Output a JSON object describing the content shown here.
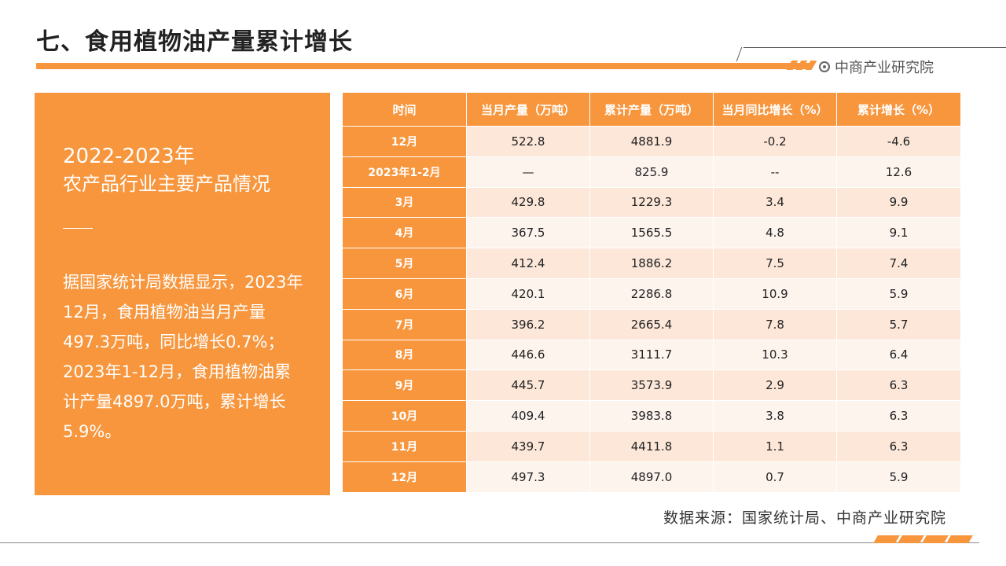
{
  "header": {
    "title": "七、食用植物油产量累计增长",
    "brand": "中商产业研究院",
    "accent_color": "#f7963d"
  },
  "panel": {
    "year": "2022-2023年",
    "subtitle": "农产品行业主要产品情况",
    "body": "据国家统计局数据显示，2023年12月，食用植物油当月产量497.3万吨，同比增长0.7%；2023年1-12月，食用植物油累计产量4897.0万吨，累计增长5.9%。"
  },
  "table": {
    "headers": [
      "时间",
      "当月产量（万吨）",
      "累计产量（万吨）",
      "当月同比增长（%）",
      "累计增长（%）"
    ],
    "rows": [
      [
        "12月",
        "522.8",
        "4881.9",
        "-0.2",
        "-4.6"
      ],
      [
        "2023年1-2月",
        "—",
        "825.9",
        "--",
        "12.6"
      ],
      [
        "3月",
        "429.8",
        "1229.3",
        "3.4",
        "9.9"
      ],
      [
        "4月",
        "367.5",
        "1565.5",
        "4.8",
        "9.1"
      ],
      [
        "5月",
        "412.4",
        "1886.2",
        "7.5",
        "7.4"
      ],
      [
        "6月",
        "420.1",
        "2286.8",
        "10.9",
        "5.9"
      ],
      [
        "7月",
        "396.2",
        "2665.4",
        "7.8",
        "5.7"
      ],
      [
        "8月",
        "446.6",
        "3111.7",
        "10.3",
        "6.4"
      ],
      [
        "9月",
        "445.7",
        "3573.9",
        "2.9",
        "6.3"
      ],
      [
        "10月",
        "409.4",
        "3983.8",
        "3.8",
        "6.3"
      ],
      [
        "11月",
        "439.7",
        "4411.8",
        "1.1",
        "6.3"
      ],
      [
        "12月",
        "497.3",
        "4897.0",
        "0.7",
        "5.9"
      ]
    ]
  },
  "footer": {
    "source": "数据来源：国家统计局、中商产业研究院"
  }
}
